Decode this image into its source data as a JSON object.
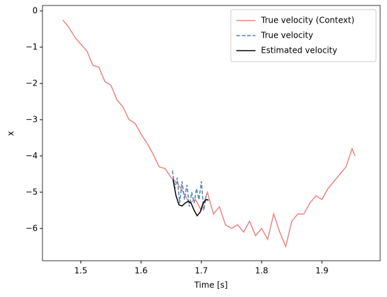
{
  "chart_data": {
    "type": "line",
    "xlabel": "Time [s]",
    "ylabel": "x",
    "xlim": [
      1.4364,
      1.9966
    ],
    "ylim": [
      -6.89,
      0.15
    ],
    "xticks": [
      1.5,
      1.6,
      1.7,
      1.8,
      1.9
    ],
    "yticks": [
      {
        "value": 0,
        "label": "0"
      },
      {
        "value": -1,
        "label": "−1"
      },
      {
        "value": -2,
        "label": "−2"
      },
      {
        "value": -3,
        "label": "−3"
      },
      {
        "value": -4,
        "label": "−4"
      },
      {
        "value": -5,
        "label": "−5"
      },
      {
        "value": -6,
        "label": "−6"
      }
    ],
    "legend": "upper right",
    "series": [
      {
        "name": "True velocity (Context)",
        "color": "#f08080",
        "dash": false,
        "x": [
          1.47,
          1.48,
          1.49,
          1.5,
          1.51,
          1.52,
          1.53,
          1.54,
          1.55,
          1.56,
          1.57,
          1.58,
          1.59,
          1.6,
          1.61,
          1.62,
          1.63,
          1.64,
          1.65,
          1.66,
          1.67,
          1.68,
          1.69,
          1.7,
          1.71,
          1.72,
          1.73,
          1.74,
          1.75,
          1.76,
          1.77,
          1.78,
          1.79,
          1.8,
          1.81,
          1.82,
          1.83,
          1.84,
          1.85,
          1.86,
          1.87,
          1.88,
          1.89,
          1.9,
          1.91,
          1.92,
          1.93,
          1.94,
          1.95,
          1.955
        ],
        "values": [
          -0.25,
          -0.45,
          -0.72,
          -0.92,
          -1.1,
          -1.5,
          -1.55,
          -1.95,
          -2.05,
          -2.45,
          -2.65,
          -3.0,
          -3.1,
          -3.4,
          -3.65,
          -3.95,
          -4.3,
          -4.35,
          -4.6,
          -4.75,
          -5.0,
          -5.3,
          -5.2,
          -5.5,
          -5.0,
          -5.6,
          -5.4,
          -5.9,
          -6.0,
          -5.9,
          -6.1,
          -5.8,
          -6.2,
          -6.0,
          -6.3,
          -5.6,
          -6.1,
          -6.5,
          -5.8,
          -5.6,
          -5.6,
          -5.3,
          -5.1,
          -5.2,
          -4.9,
          -4.7,
          -4.5,
          -4.3,
          -3.8,
          -4.0
        ]
      },
      {
        "name": "True velocity",
        "color": "#4682b4",
        "dash": true,
        "x": [
          1.652,
          1.656,
          1.66,
          1.664,
          1.668,
          1.672,
          1.676,
          1.68,
          1.684,
          1.688,
          1.692,
          1.696,
          1.7,
          1.704,
          1.708
        ],
        "values": [
          -4.4,
          -4.9,
          -4.6,
          -5.3,
          -4.7,
          -5.2,
          -4.8,
          -5.4,
          -5.0,
          -5.3,
          -4.9,
          -5.2,
          -4.7,
          -5.5,
          -5.1
        ]
      },
      {
        "name": "Estimated velocity",
        "color": "#000000",
        "dash": false,
        "x": [
          1.653,
          1.658,
          1.663,
          1.668,
          1.673,
          1.678,
          1.683,
          1.688,
          1.693,
          1.698,
          1.703,
          1.708,
          1.712
        ],
        "values": [
          -4.65,
          -5.1,
          -5.35,
          -5.38,
          -5.3,
          -5.25,
          -5.3,
          -5.5,
          -5.65,
          -5.55,
          -5.3,
          -5.2,
          -5.22
        ]
      }
    ]
  }
}
